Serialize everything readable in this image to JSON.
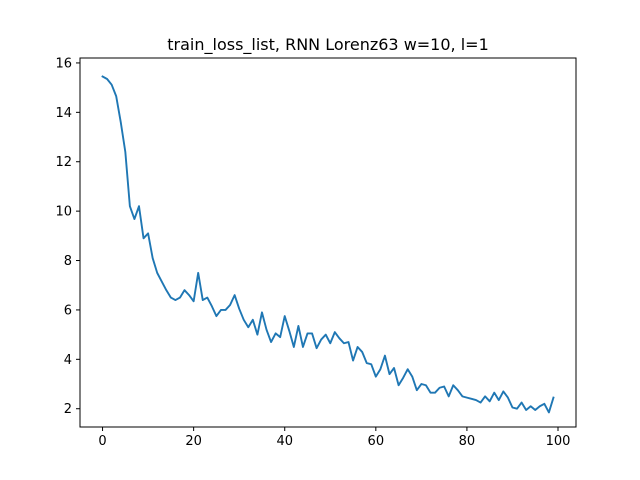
{
  "chart_data": {
    "type": "line",
    "title": "train_loss_list, RNN Lorenz63 w=10, l=1",
    "xlabel": "",
    "ylabel": "",
    "xlim": [
      -4.95,
      103.95
    ],
    "ylim": [
      1.26,
      16.2
    ],
    "x_ticks": [
      0,
      20,
      40,
      60,
      80,
      100
    ],
    "y_ticks": [
      2,
      4,
      6,
      8,
      10,
      12,
      14,
      16
    ],
    "grid": false,
    "line_color": "#1f77b4",
    "series": [
      {
        "x": [
          0,
          1,
          2,
          3,
          4,
          5,
          6,
          7,
          8,
          9,
          10,
          11,
          12,
          13,
          14,
          15,
          16,
          17,
          18,
          19,
          20,
          21,
          22,
          23,
          24,
          25,
          26,
          27,
          28,
          29,
          30,
          31,
          32,
          33,
          34,
          35,
          36,
          37,
          38,
          39,
          40,
          41,
          42,
          43,
          44,
          45,
          46,
          47,
          48,
          49,
          50,
          51,
          52,
          53,
          54,
          55,
          56,
          57,
          58,
          59,
          60,
          61,
          62,
          63,
          64,
          65,
          66,
          67,
          68,
          69,
          70,
          71,
          72,
          73,
          74,
          75,
          76,
          77,
          78,
          79,
          80,
          81,
          82,
          83,
          84,
          85,
          86,
          87,
          88,
          89,
          90,
          91,
          92,
          93,
          94,
          95,
          96,
          97,
          98,
          99
        ],
        "values": [
          15.45,
          15.35,
          15.12,
          14.65,
          13.6,
          12.4,
          10.2,
          9.68,
          10.2,
          8.9,
          9.1,
          8.1,
          7.5,
          7.15,
          6.8,
          6.5,
          6.4,
          6.5,
          6.8,
          6.6,
          6.35,
          7.5,
          6.4,
          6.5,
          6.15,
          5.75,
          6.0,
          6.0,
          6.2,
          6.6,
          6.05,
          5.6,
          5.3,
          5.6,
          5.0,
          5.9,
          5.2,
          4.7,
          5.05,
          4.9,
          5.75,
          5.15,
          4.5,
          5.35,
          4.5,
          5.05,
          5.05,
          4.45,
          4.8,
          5.0,
          4.65,
          5.1,
          4.85,
          4.65,
          4.7,
          3.95,
          4.5,
          4.3,
          3.85,
          3.8,
          3.3,
          3.6,
          4.15,
          3.4,
          3.65,
          2.95,
          3.25,
          3.6,
          3.3,
          2.75,
          3.0,
          2.95,
          2.65,
          2.65,
          2.85,
          2.9,
          2.5,
          2.95,
          2.75,
          2.5,
          2.45,
          2.4,
          2.35,
          2.25,
          2.5,
          2.3,
          2.65,
          2.35,
          2.7,
          2.45,
          2.05,
          2.0,
          2.25,
          1.95,
          2.1,
          1.95,
          2.1,
          2.2,
          1.85,
          2.45
        ]
      }
    ]
  }
}
